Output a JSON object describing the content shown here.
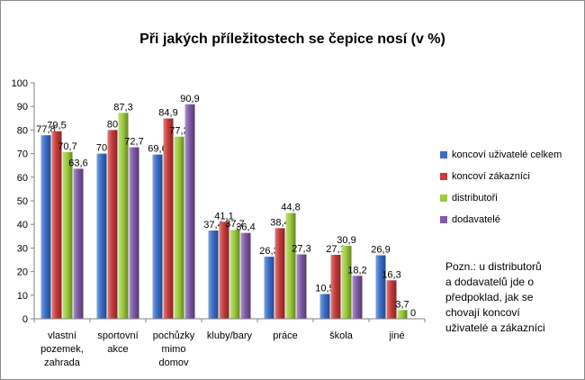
{
  "chart_data": {
    "type": "bar",
    "title": "Při jakých příležitostech se čepice nosí (v %)",
    "categories": [
      "vlastní pozemek, zahrada",
      "sportovní akce",
      "pochůzky mimo domov",
      "kluby/bary",
      "práce",
      "škola",
      "jiné"
    ],
    "category_lines": [
      [
        "vlastní",
        "pozemek,",
        "zahrada"
      ],
      [
        "sportovní",
        "akce"
      ],
      [
        "pochůzky",
        "mimo",
        "domov"
      ],
      [
        "kluby/bary"
      ],
      [
        "práce"
      ],
      [
        "škola"
      ],
      [
        "jiné"
      ]
    ],
    "series": [
      {
        "name": "koncoví uživatelé celkem",
        "color": "#3a6ec9",
        "values": [
          77.8,
          70,
          69.6,
          37.4,
          26.3,
          10.5,
          26.9
        ]
      },
      {
        "name": "koncoví zákazníci",
        "color": "#c93a3a",
        "values": [
          79.5,
          80,
          84.9,
          41.1,
          38.4,
          27.1,
          16.3
        ]
      },
      {
        "name": "distributoři",
        "color": "#9ccc3c",
        "values": [
          70.7,
          87.3,
          77.2,
          37.7,
          44.8,
          30.9,
          3.7
        ]
      },
      {
        "name": "dodavatelé",
        "color": "#7f5aa8",
        "values": [
          63.6,
          72.7,
          90.9,
          36.4,
          27.3,
          18.2,
          0
        ]
      }
    ],
    "ylim": [
      0,
      100
    ],
    "yticks": [
      0,
      10,
      20,
      30,
      40,
      50,
      60,
      70,
      80,
      90,
      100
    ],
    "legend_position": "right",
    "grid": false
  },
  "note": {
    "lines": [
      "Pozn.: u distributorů",
      "a dodavatelů jde o",
      "předpoklad, jak se",
      "chovají koncoví",
      "uživatelé a zákazníci"
    ]
  }
}
